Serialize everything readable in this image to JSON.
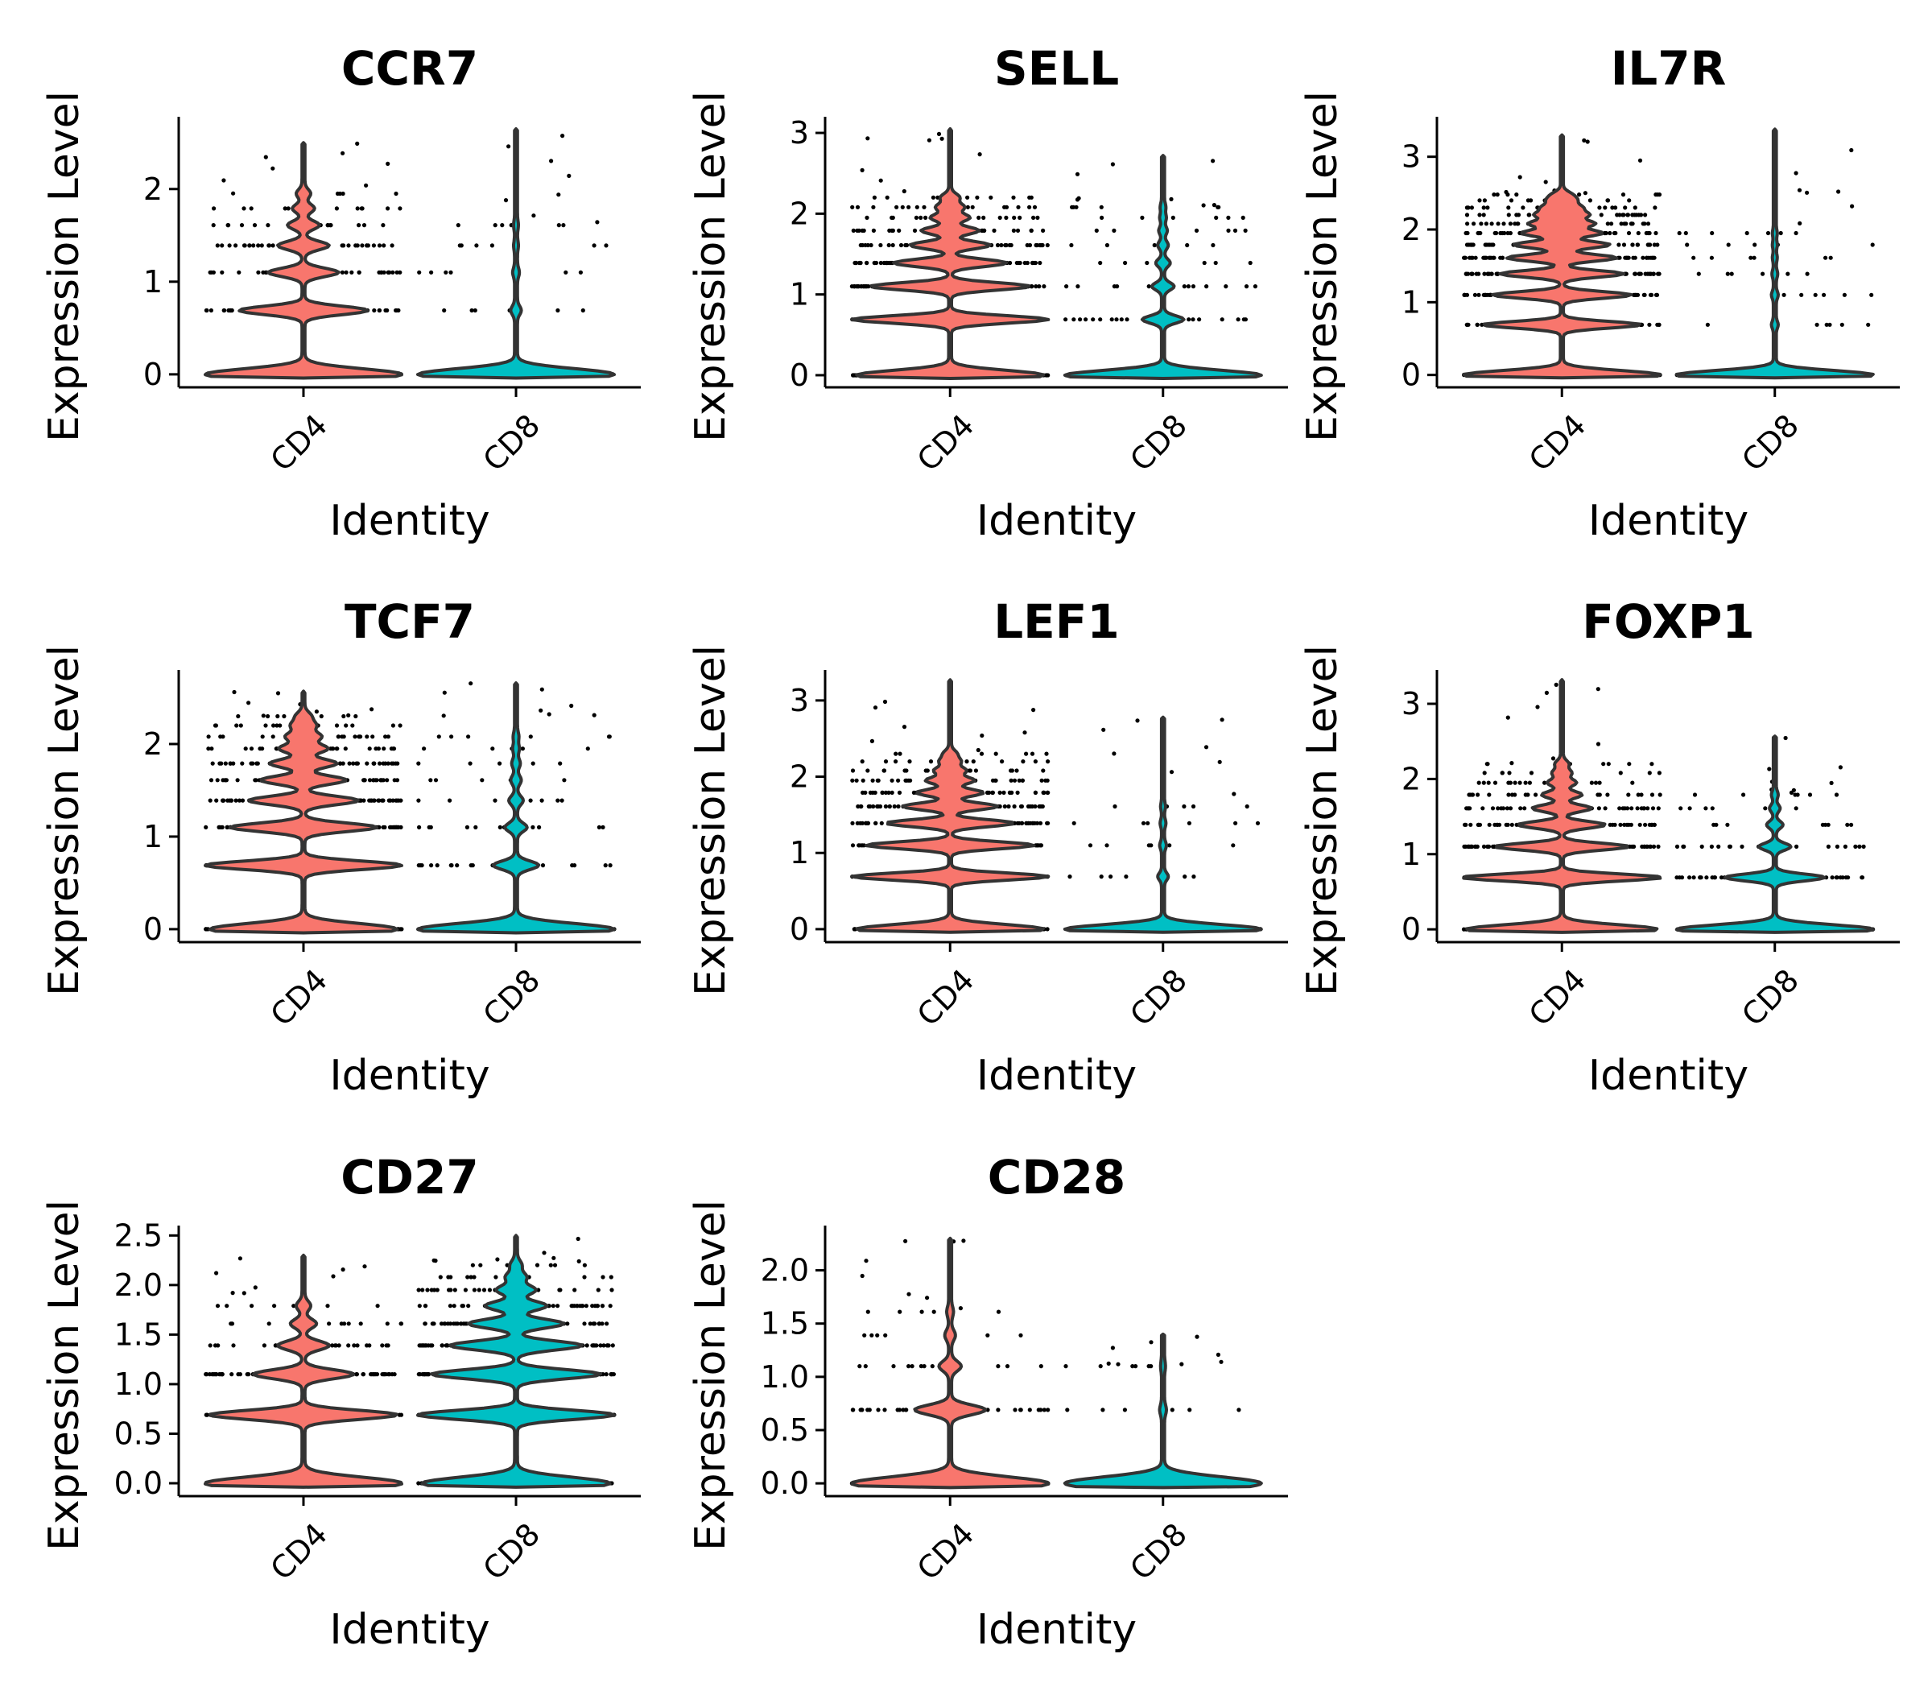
{
  "chart_data": [
    {
      "type": "violin",
      "title": "CCR7",
      "xlabel": "Identity",
      "ylabel": "Expression Level",
      "categories": [
        "CD4",
        "CD8"
      ],
      "fill_colors": [
        "#F8766D",
        "#00BFC4"
      ],
      "yticks": [
        "0",
        "1",
        "2"
      ],
      "ytick_values": [
        0,
        1,
        2
      ],
      "ylim": [
        -0.14,
        2.78
      ],
      "series": [
        {
          "category": "CD4",
          "max": 2.5,
          "peaks": [
            [
              0,
              1.0
            ],
            [
              0.69,
              0.65
            ],
            [
              1.1,
              0.35
            ],
            [
              1.39,
              0.25
            ],
            [
              1.61,
              0.15
            ],
            [
              1.79,
              0.1
            ],
            [
              1.95,
              0.06
            ]
          ]
        },
        {
          "category": "CD8",
          "max": 2.65,
          "peaks": [
            [
              0,
              1.0
            ],
            [
              0.69,
              0.04
            ],
            [
              1.1,
              0.02
            ],
            [
              1.39,
              0.01
            ],
            [
              1.61,
              0.01
            ]
          ]
        }
      ]
    },
    {
      "type": "violin",
      "title": "SELL",
      "xlabel": "Identity",
      "ylabel": "Expression Level",
      "categories": [
        "CD4",
        "CD8"
      ],
      "fill_colors": [
        "#F8766D",
        "#00BFC4"
      ],
      "yticks": [
        "0",
        "1",
        "2",
        "3"
      ],
      "ytick_values": [
        0,
        1,
        2,
        3
      ],
      "ylim": [
        -0.15,
        3.2
      ],
      "series": [
        {
          "category": "CD4",
          "max": 3.05,
          "peaks": [
            [
              0,
              1.0
            ],
            [
              0.69,
              1.05
            ],
            [
              1.1,
              0.85
            ],
            [
              1.39,
              0.6
            ],
            [
              1.61,
              0.42
            ],
            [
              1.79,
              0.3
            ],
            [
              1.95,
              0.2
            ],
            [
              2.08,
              0.14
            ],
            [
              2.2,
              0.09
            ]
          ]
        },
        {
          "category": "CD8",
          "max": 2.72,
          "peaks": [
            [
              0,
              1.0
            ],
            [
              0.69,
              0.2
            ],
            [
              1.1,
              0.1
            ],
            [
              1.39,
              0.06
            ],
            [
              1.61,
              0.04
            ],
            [
              1.79,
              0.03
            ],
            [
              1.95,
              0.02
            ],
            [
              2.08,
              0.015
            ]
          ]
        }
      ]
    },
    {
      "type": "violin",
      "title": "IL7R",
      "xlabel": "Identity",
      "ylabel": "Expression Level",
      "categories": [
        "CD4",
        "CD8"
      ],
      "fill_colors": [
        "#F8766D",
        "#00BFC4"
      ],
      "yticks": [
        "0",
        "1",
        "2",
        "3"
      ],
      "ytick_values": [
        0,
        1,
        2,
        3
      ],
      "ylim": [
        -0.17,
        3.55
      ],
      "series": [
        {
          "category": "CD4",
          "max": 3.3,
          "peaks": [
            [
              0,
              1.0
            ],
            [
              0.69,
              0.8
            ],
            [
              1.1,
              0.7
            ],
            [
              1.39,
              0.62
            ],
            [
              1.61,
              0.55
            ],
            [
              1.79,
              0.48
            ],
            [
              1.95,
              0.4
            ],
            [
              2.08,
              0.32
            ],
            [
              2.2,
              0.25
            ],
            [
              2.3,
              0.18
            ],
            [
              2.4,
              0.12
            ],
            [
              2.48,
              0.08
            ]
          ]
        },
        {
          "category": "CD8",
          "max": 3.38,
          "peaks": [
            [
              0,
              1.0
            ],
            [
              0.69,
              0.02
            ],
            [
              1.1,
              0.02
            ],
            [
              1.39,
              0.015
            ],
            [
              1.61,
              0.01
            ],
            [
              1.79,
              0.01
            ],
            [
              1.95,
              0.01
            ]
          ]
        }
      ]
    },
    {
      "type": "violin",
      "title": "TCF7",
      "xlabel": "Identity",
      "ylabel": "Expression Level",
      "categories": [
        "CD4",
        "CD8"
      ],
      "fill_colors": [
        "#F8766D",
        "#00BFC4"
      ],
      "yticks": [
        "0",
        "1",
        "2"
      ],
      "ytick_values": [
        0,
        1,
        2
      ],
      "ylim": [
        -0.14,
        2.8
      ],
      "series": [
        {
          "category": "CD4",
          "max": 2.57,
          "peaks": [
            [
              0,
              1.0
            ],
            [
              0.69,
              1.05
            ],
            [
              1.1,
              0.78
            ],
            [
              1.39,
              0.58
            ],
            [
              1.61,
              0.45
            ],
            [
              1.79,
              0.35
            ],
            [
              1.95,
              0.25
            ],
            [
              2.08,
              0.18
            ],
            [
              2.2,
              0.12
            ],
            [
              2.3,
              0.07
            ]
          ]
        },
        {
          "category": "CD8",
          "max": 2.66,
          "peaks": [
            [
              0,
              1.0
            ],
            [
              0.69,
              0.22
            ],
            [
              1.1,
              0.1
            ],
            [
              1.39,
              0.06
            ],
            [
              1.61,
              0.04
            ],
            [
              1.79,
              0.03
            ],
            [
              1.95,
              0.02
            ],
            [
              2.08,
              0.015
            ]
          ]
        }
      ]
    },
    {
      "type": "violin",
      "title": "LEF1",
      "xlabel": "Identity",
      "ylabel": "Expression Level",
      "categories": [
        "CD4",
        "CD8"
      ],
      "fill_colors": [
        "#F8766D",
        "#00BFC4"
      ],
      "yticks": [
        "0",
        "1",
        "2",
        "3"
      ],
      "ytick_values": [
        0,
        1,
        2,
        3
      ],
      "ylim": [
        -0.17,
        3.4
      ],
      "series": [
        {
          "category": "CD4",
          "max": 3.27,
          "peaks": [
            [
              0,
              1.0
            ],
            [
              0.69,
              1.05
            ],
            [
              1.1,
              0.9
            ],
            [
              1.39,
              0.68
            ],
            [
              1.61,
              0.5
            ],
            [
              1.79,
              0.35
            ],
            [
              1.95,
              0.25
            ],
            [
              2.08,
              0.16
            ],
            [
              2.2,
              0.1
            ],
            [
              2.3,
              0.06
            ]
          ]
        },
        {
          "category": "CD8",
          "max": 2.78,
          "peaks": [
            [
              0,
              1.0
            ],
            [
              0.69,
              0.04
            ],
            [
              1.1,
              0.02
            ],
            [
              1.39,
              0.015
            ],
            [
              1.61,
              0.01
            ]
          ]
        }
      ]
    },
    {
      "type": "violin",
      "title": "FOXP1",
      "xlabel": "Identity",
      "ylabel": "Expression Level",
      "categories": [
        "CD4",
        "CD8"
      ],
      "fill_colors": [
        "#F8766D",
        "#00BFC4"
      ],
      "yticks": [
        "0",
        "1",
        "2",
        "3"
      ],
      "ytick_values": [
        0,
        1,
        2,
        3
      ],
      "ylim": [
        -0.17,
        3.45
      ],
      "series": [
        {
          "category": "CD4",
          "max": 3.32,
          "peaks": [
            [
              0,
              1.0
            ],
            [
              0.69,
              1.05
            ],
            [
              1.1,
              0.7
            ],
            [
              1.39,
              0.45
            ],
            [
              1.61,
              0.3
            ],
            [
              1.79,
              0.2
            ],
            [
              1.95,
              0.14
            ],
            [
              2.08,
              0.09
            ],
            [
              2.2,
              0.06
            ]
          ]
        },
        {
          "category": "CD8",
          "max": 2.57,
          "peaks": [
            [
              0,
              1.0
            ],
            [
              0.69,
              0.5
            ],
            [
              1.1,
              0.15
            ],
            [
              1.39,
              0.07
            ],
            [
              1.61,
              0.04
            ],
            [
              1.79,
              0.02
            ]
          ]
        }
      ]
    },
    {
      "type": "violin",
      "title": "CD27",
      "xlabel": "Identity",
      "ylabel": "Expression Level",
      "categories": [
        "CD4",
        "CD8"
      ],
      "fill_colors": [
        "#F8766D",
        "#00BFC4"
      ],
      "yticks": [
        "0.0",
        "0.5",
        "1.0",
        "1.5",
        "2.0",
        "2.5"
      ],
      "ytick_values": [
        0,
        0.5,
        1.0,
        1.5,
        2.0,
        2.5
      ],
      "ylim": [
        -0.13,
        2.6
      ],
      "series": [
        {
          "category": "CD4",
          "max": 2.3,
          "peaks": [
            [
              0,
              1.0
            ],
            [
              0.69,
              0.95
            ],
            [
              1.1,
              0.5
            ],
            [
              1.39,
              0.25
            ],
            [
              1.61,
              0.12
            ],
            [
              1.79,
              0.06
            ]
          ]
        },
        {
          "category": "CD8",
          "max": 2.5,
          "peaks": [
            [
              0,
              1.0
            ],
            [
              0.69,
              1.05
            ],
            [
              1.1,
              0.9
            ],
            [
              1.39,
              0.7
            ],
            [
              1.61,
              0.5
            ],
            [
              1.79,
              0.32
            ],
            [
              1.95,
              0.2
            ],
            [
              2.08,
              0.1
            ],
            [
              2.2,
              0.05
            ]
          ]
        }
      ]
    },
    {
      "type": "violin",
      "title": "CD28",
      "xlabel": "Identity",
      "ylabel": "Expression Level",
      "categories": [
        "CD4",
        "CD8"
      ],
      "fill_colors": [
        "#F8766D",
        "#00BFC4"
      ],
      "yticks": [
        "0.0",
        "0.5",
        "1.0",
        "1.5",
        "2.0"
      ],
      "ytick_values": [
        0,
        0.5,
        1.0,
        1.5,
        2.0
      ],
      "ylim": [
        -0.12,
        2.42
      ],
      "series": [
        {
          "category": "CD4",
          "max": 2.3,
          "peaks": [
            [
              0,
              1.0
            ],
            [
              0.69,
              0.35
            ],
            [
              1.1,
              0.1
            ],
            [
              1.39,
              0.04
            ],
            [
              1.61,
              0.02
            ]
          ]
        },
        {
          "category": "CD8",
          "max": 1.4,
          "peaks": [
            [
              0,
              1.0
            ],
            [
              0.69,
              0.02
            ],
            [
              1.1,
              0.01
            ]
          ]
        }
      ]
    }
  ]
}
